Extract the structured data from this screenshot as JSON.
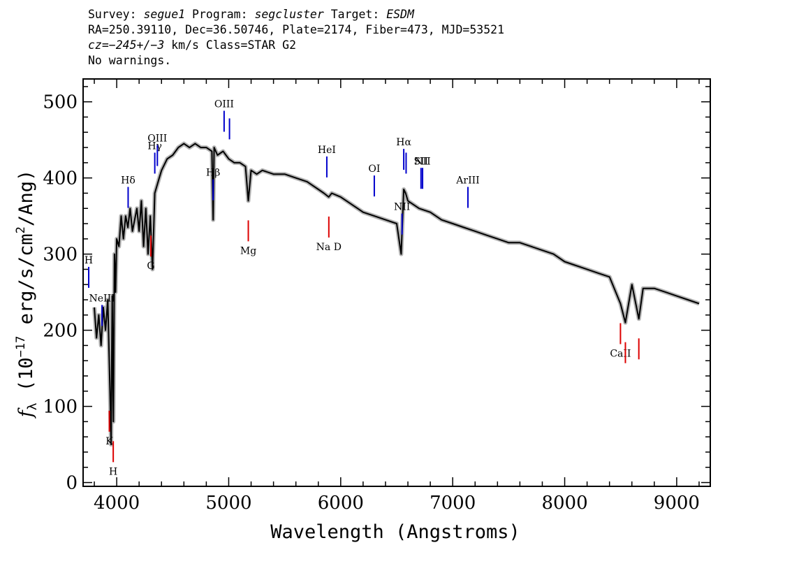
{
  "header": {
    "line1_a": "Survey: ",
    "survey": "segue1",
    "line1_b": " Program: ",
    "program": "segcluster",
    "line1_c": " Target: ",
    "target": "ESDM",
    "line2": "RA=250.39110, Dec=36.50746, Plate=2174, Fiber=473, MJD=53521",
    "cz": "cz=−245+/−3",
    "line3_b": " km/s Class=STAR G2",
    "line4": "No warnings."
  },
  "chart_data": {
    "type": "line",
    "xlabel": "Wavelength (Angstroms)",
    "ylabel": "fλ (10^-17 erg/s/cm²/Ang)",
    "xlim": [
      3700,
      9300
    ],
    "ylim": [
      -5,
      530
    ],
    "x_ticks": [
      4000,
      5000,
      6000,
      7000,
      8000,
      9000
    ],
    "y_ticks": [
      0,
      100,
      200,
      300,
      400,
      500
    ],
    "grid": false,
    "colors": {
      "spectrum": "#000000",
      "error_band": "#b4b4b4",
      "emission_lines": "#0000cc",
      "absorption_lines": "#dd0000"
    },
    "series": [
      {
        "x": [
          3800,
          3820,
          3840,
          3860,
          3880,
          3900,
          3920,
          3940,
          3950,
          3960,
          3970,
          3980,
          3990,
          4000,
          4020,
          4040,
          4060,
          4080,
          4100,
          4120,
          4140,
          4160,
          4180,
          4200,
          4220,
          4240,
          4260,
          4280,
          4300,
          4320,
          4340,
          4360,
          4380,
          4400,
          4450,
          4500,
          4550,
          4600,
          4650,
          4700,
          4750,
          4800,
          4850,
          4861,
          4870,
          4900,
          4950,
          5000,
          5050,
          5100,
          5150,
          5175,
          5200,
          5250,
          5300,
          5400,
          5500,
          5600,
          5700,
          5800,
          5850,
          5893,
          5920,
          6000,
          6100,
          6200,
          6300,
          6400,
          6500,
          6540,
          6563,
          6580,
          6600,
          6700,
          6800,
          6900,
          7000,
          7100,
          7200,
          7300,
          7400,
          7500,
          7600,
          7700,
          7800,
          7900,
          8000,
          8100,
          8200,
          8300,
          8400,
          8498,
          8542,
          8600,
          8662,
          8700,
          8800,
          8900,
          9000,
          9100,
          9200
        ],
        "values": [
          230,
          190,
          220,
          180,
          230,
          200,
          240,
          120,
          50,
          245,
          80,
          300,
          250,
          320,
          310,
          350,
          320,
          350,
          335,
          360,
          330,
          345,
          360,
          330,
          370,
          310,
          360,
          300,
          350,
          280,
          380,
          390,
          400,
          410,
          425,
          430,
          440,
          445,
          440,
          445,
          440,
          440,
          435,
          345,
          440,
          430,
          435,
          425,
          420,
          420,
          415,
          370,
          410,
          405,
          410,
          405,
          405,
          400,
          395,
          385,
          380,
          375,
          380,
          375,
          365,
          355,
          350,
          345,
          340,
          300,
          385,
          380,
          370,
          360,
          355,
          345,
          340,
          335,
          330,
          325,
          320,
          315,
          315,
          310,
          305,
          300,
          290,
          285,
          280,
          275,
          270,
          235,
          210,
          260,
          215,
          255,
          255,
          250,
          245,
          240,
          235
        ]
      }
    ],
    "emission_lines": [
      {
        "label": "H",
        "x": 3750
      },
      {
        "label": "NeIII",
        "x": 3869
      },
      {
        "label": "Hδ",
        "x": 4102
      },
      {
        "label": "Hγ",
        "x": 4340
      },
      {
        "label": "OIII",
        "x": 4363
      },
      {
        "label": "Hβ",
        "x": 4861
      },
      {
        "label": "OIII",
        "x": 4959
      },
      {
        "label": "",
        "x": 5007
      },
      {
        "label": "HeI",
        "x": 5876
      },
      {
        "label": "OI",
        "x": 6300
      },
      {
        "label": "NII",
        "x": 6548
      },
      {
        "label": "Hα",
        "x": 6563
      },
      {
        "label": "",
        "x": 6584
      },
      {
        "label": "SII",
        "x": 6717
      },
      {
        "label": "NII",
        "x": 6731
      },
      {
        "label": "ArIII",
        "x": 7136
      }
    ],
    "absorption_lines": [
      {
        "label": "K",
        "x": 3934
      },
      {
        "label": "H",
        "x": 3969
      },
      {
        "label": "G",
        "x": 4305
      },
      {
        "label": "Mg",
        "x": 5175
      },
      {
        "label": "Na D",
        "x": 5894
      },
      {
        "label": "CaII",
        "x": 8498
      },
      {
        "label": "",
        "x": 8542
      },
      {
        "label": "",
        "x": 8662
      }
    ]
  }
}
